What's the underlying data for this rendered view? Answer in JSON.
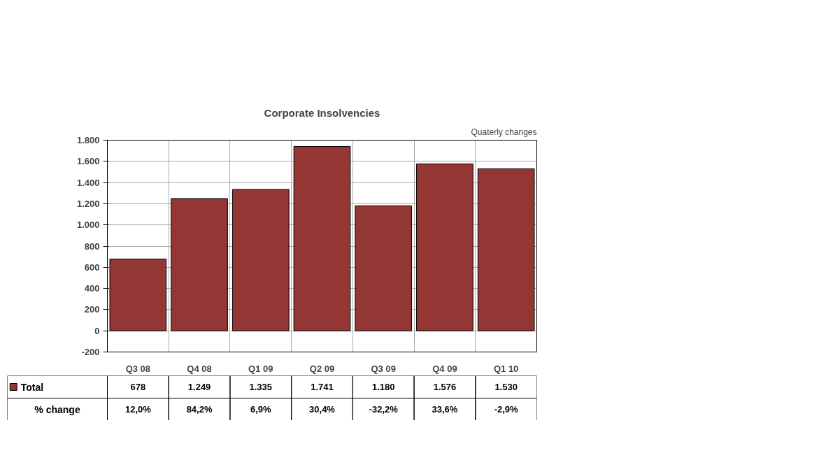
{
  "chart_data": {
    "type": "bar",
    "title": "Corporate Insolvencies",
    "subtitle": "Quaterly changes",
    "categories": [
      "Q3 08",
      "Q4 08",
      "Q1 09",
      "Q2 09",
      "Q3 09",
      "Q4 09",
      "Q1 10"
    ],
    "series": [
      {
        "name": "Total",
        "color": "#943634",
        "values": [
          678,
          1249,
          1335,
          1741,
          1180,
          1576,
          1530
        ],
        "value_labels": [
          "678",
          "1.249",
          "1.335",
          "1.741",
          "1.180",
          "1.576",
          "1.530"
        ]
      }
    ],
    "ylim": [
      -200,
      1800
    ],
    "yticks": [
      {
        "value": -200,
        "label": "-200"
      },
      0,
      200,
      400,
      600,
      800,
      {
        "value": 1000,
        "label": "1.000"
      },
      {
        "value": 1200,
        "label": "1.200"
      },
      {
        "value": 1400,
        "label": "1.400"
      },
      {
        "value": 1600,
        "label": "1.600"
      },
      {
        "value": 1800,
        "label": "1.800"
      }
    ],
    "grid": true,
    "legend": "bottom left",
    "annotations": [
      "% change",
      "12,0%",
      "84,2%",
      "6,9%",
      "30,4%",
      "-32,2%",
      "33,6%",
      "-2,9%"
    ]
  }
}
